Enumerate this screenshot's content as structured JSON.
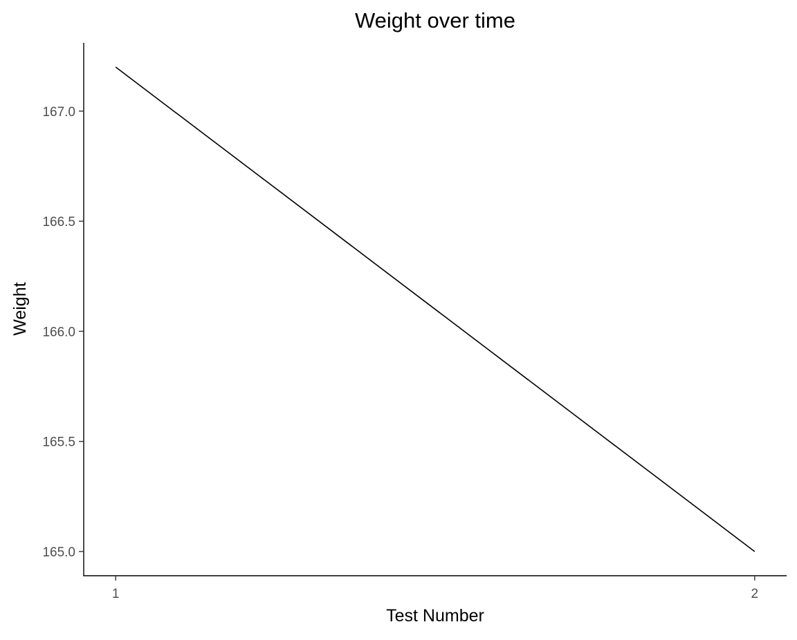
{
  "chart_data": {
    "type": "line",
    "title": "Weight over time",
    "xlabel": "Test Number",
    "ylabel": "Weight",
    "x": [
      1,
      2
    ],
    "series": [
      {
        "values": [
          167.2,
          165.0
        ],
        "color": "#000000"
      }
    ],
    "x_ticks": [
      {
        "value": 1,
        "label": "1"
      },
      {
        "value": 2,
        "label": "2"
      }
    ],
    "y_ticks": [
      {
        "value": 165.0,
        "label": "165.0"
      },
      {
        "value": 165.5,
        "label": "165.5"
      },
      {
        "value": 166.0,
        "label": "166.0"
      },
      {
        "value": 166.5,
        "label": "166.5"
      },
      {
        "value": 167.0,
        "label": "167.0"
      }
    ],
    "xlim": [
      0.95,
      2.05
    ],
    "ylim": [
      164.89,
      167.31
    ],
    "grid": false,
    "legend": "none",
    "colors": {
      "background": "#ffffff",
      "axis_line": "#000000",
      "tick_text": "#4d4d4d",
      "title_text": "#000000"
    }
  }
}
